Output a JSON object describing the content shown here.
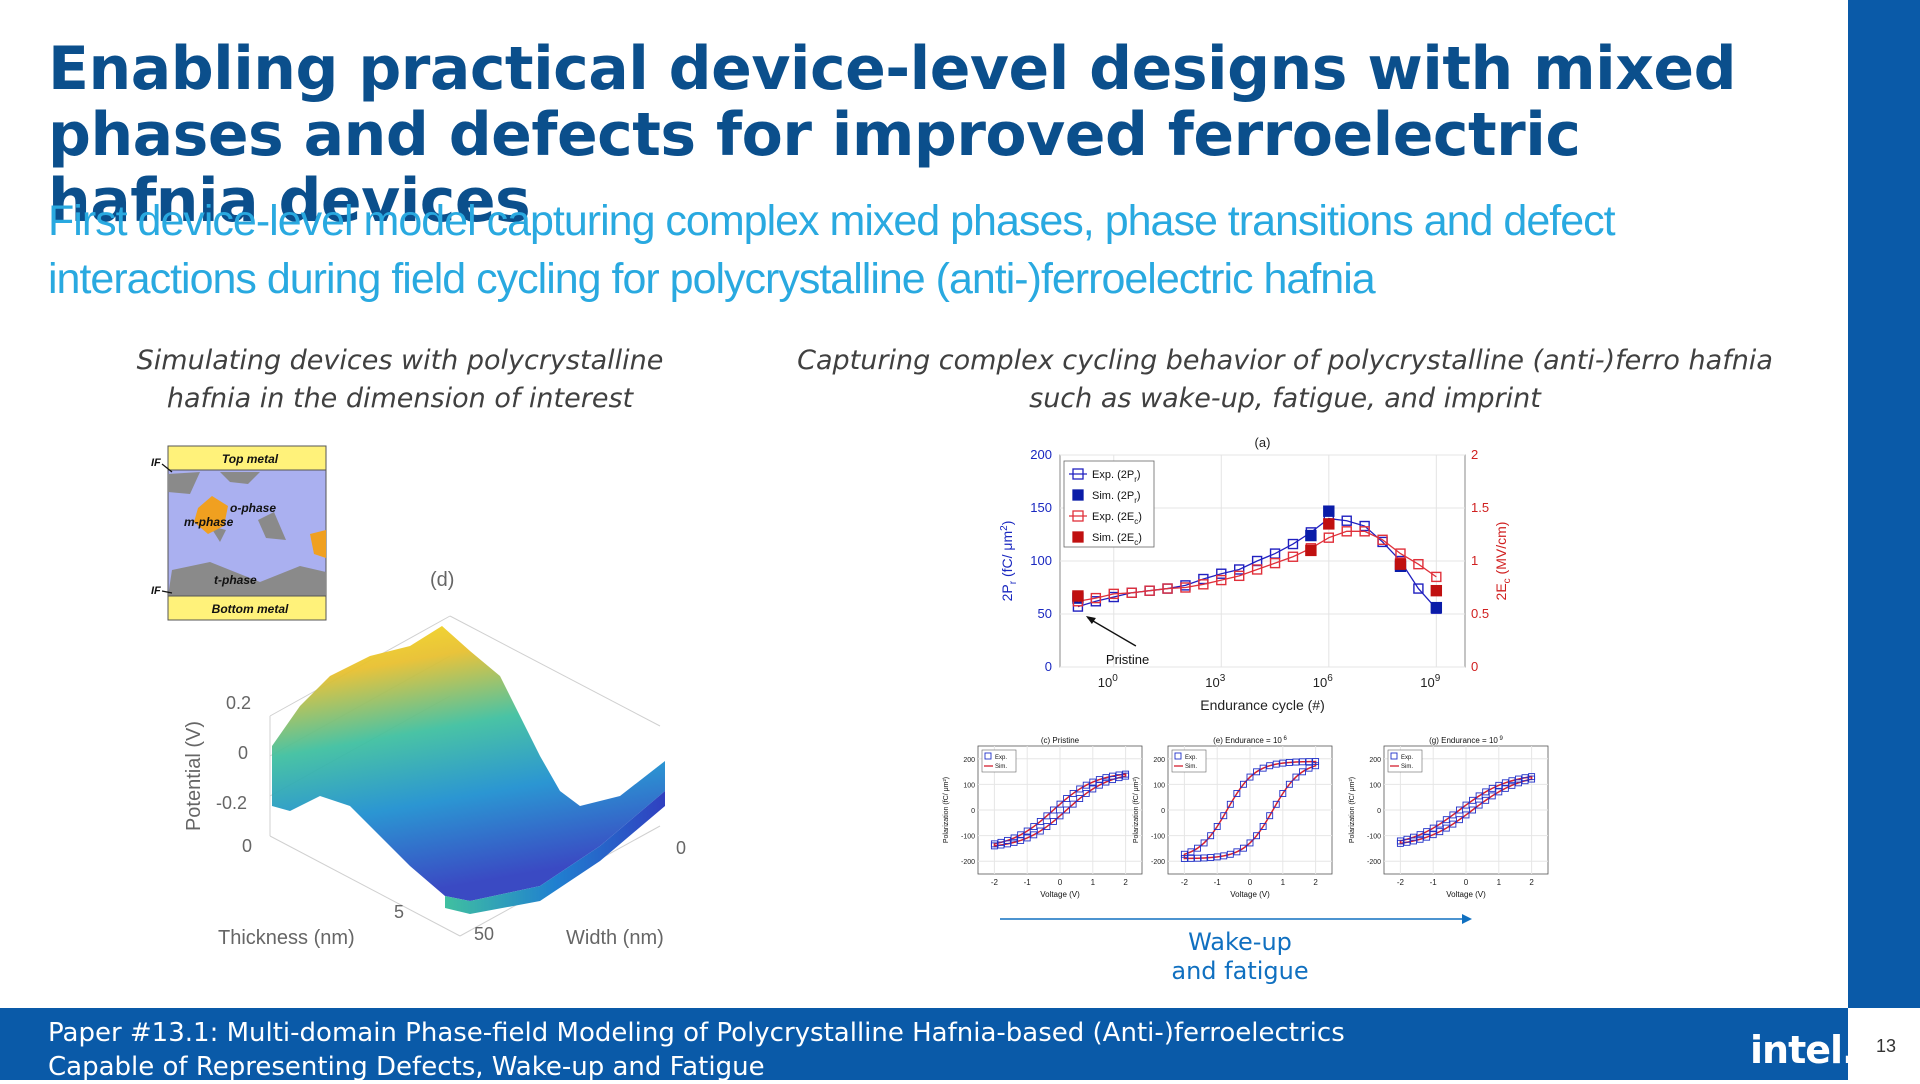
{
  "slide": {
    "title": "Enabling practical device-level designs with mixed phases and defects for improved ferroelectric hafnia devices",
    "subtitle": "First device-level model capturing complex mixed phases, phase transitions and defect interactions during field cycling for polycrystalline (anti-)ferroelectric hafnia",
    "left_caption": "Simulating devices with polycrystalline hafnia in the dimension of interest",
    "right_caption": "Capturing complex cycling behavior of polycrystalline (anti-)ferro hafnia such as wake-up, fatigue, and imprint",
    "footer_line1": "Paper #13.1: Multi-domain Phase-field Modeling of Polycrystalline Hafnia-based (Anti-)ferroelectrics",
    "footer_line2": "Capable of Representing Defects, Wake-up and Fatigue",
    "logo_text": "intel.",
    "page_number": "13",
    "wake_label_1": "Wake-up",
    "wake_label_2": "and fatigue",
    "accent_color": "#0a5aa8",
    "title_color": "#0b4f8c",
    "subtitle_color": "#29a9e0"
  },
  "device_schematic": {
    "top_label": "Top metal",
    "bottom_label": "Bottom metal",
    "o_phase_label": "o-phase",
    "m_phase_label": "m-phase",
    "t_phase_label": "t-phase",
    "if_top_label": "IF",
    "if_bottom_label": "IF"
  },
  "surface_plot": {
    "panel_label": "(d)",
    "zlabel": "Potential (V)",
    "xlabel": "Thickness (nm)",
    "ylabel": "Width (nm)",
    "z_ticks": [
      "0.2",
      "0",
      "-0.2"
    ],
    "thickness_ticks": [
      "0",
      "5"
    ],
    "width_ticks": [
      "0",
      "50"
    ]
  },
  "chart_data": [
    {
      "type": "scatter",
      "panel_label": "(a)",
      "xlabel": "Endurance cycle (#)",
      "ylabel": "2P",
      "ylabel_sub": "r",
      "ylabel_unit": "(fC/ μm",
      "ylabel_sup": "2",
      "ylabel_tail": ")",
      "y2label": "2E",
      "y2label_sub": "c",
      "y2label_unit": "(MV/cm)",
      "x_scale": "log",
      "x_ticks": [
        {
          "base": "10",
          "exp": "0",
          "value": 1
        },
        {
          "base": "10",
          "exp": "3",
          "value": 1000
        },
        {
          "base": "10",
          "exp": "6",
          "value": 1000000
        },
        {
          "base": "10",
          "exp": "9",
          "value": 1000000000
        }
      ],
      "ylim": [
        0,
        200
      ],
      "y_ticks": [
        "0",
        "50",
        "100",
        "150",
        "200"
      ],
      "y2lim": [
        0,
        2
      ],
      "y2_ticks": [
        "0",
        "0.5",
        "1",
        "1.5",
        "2"
      ],
      "annotation": "Pristine",
      "legend": [
        {
          "prefix": "Exp. (2P",
          "sub": "r",
          "suffix": ")",
          "color": "#2020c0",
          "filled": false
        },
        {
          "prefix": "Sim. (2P",
          "sub": "r",
          "suffix": ")",
          "color": "#0a1ca8",
          "filled": true
        },
        {
          "prefix": "Exp. (2E",
          "sub": "c",
          "suffix": ")",
          "color": "#e0303a",
          "filled": false
        },
        {
          "prefix": "Sim. (2E",
          "sub": "c",
          "suffix": ")",
          "color": "#c01010",
          "filled": true
        }
      ],
      "series": [
        {
          "name": "Exp. (2Pr)",
          "axis": "left",
          "color": "#2020c0",
          "log_x": [
            -1,
            -0.5,
            0,
            0.5,
            1,
            1.5,
            2,
            2.5,
            3,
            3.5,
            4,
            4.5,
            5,
            5.5,
            6,
            6.5,
            7,
            7.5,
            8,
            8.5,
            9
          ],
          "y": [
            57,
            62,
            66,
            70,
            72,
            74,
            77,
            83,
            88,
            92,
            100,
            107,
            116,
            127,
            140,
            138,
            133,
            118,
            100,
            74,
            55
          ]
        },
        {
          "name": "Sim. (2Pr)",
          "axis": "left",
          "color": "#0a1ca8",
          "log_x": [
            -1,
            5.5,
            6,
            8,
            9
          ],
          "y": [
            65,
            124,
            147,
            95,
            56
          ]
        },
        {
          "name": "Exp. (2Ec)",
          "axis": "right",
          "color": "#e0303a",
          "log_x": [
            -1,
            -0.5,
            0,
            0.5,
            1,
            1.5,
            2,
            2.5,
            3,
            3.5,
            4,
            4.5,
            5,
            5.5,
            6,
            6.5,
            7,
            7.5,
            8,
            8.5,
            9
          ],
          "y": [
            0.62,
            0.65,
            0.69,
            0.7,
            0.72,
            0.74,
            0.75,
            0.78,
            0.82,
            0.86,
            0.92,
            0.98,
            1.04,
            1.12,
            1.22,
            1.28,
            1.28,
            1.2,
            1.07,
            0.97,
            0.85
          ]
        },
        {
          "name": "Sim. (2Ec)",
          "axis": "right",
          "color": "#c01010",
          "log_x": [
            -1,
            5.5,
            6,
            8,
            9
          ],
          "y": [
            0.67,
            1.1,
            1.35,
            0.97,
            0.72
          ]
        }
      ]
    },
    {
      "type": "line",
      "title": "(c) Pristine",
      "xlabel": "Voltage (V)",
      "ylabel": "Polarization (fC/ μm²)",
      "x_ticks": [
        "-2",
        "-1",
        "0",
        "1",
        "2"
      ],
      "y_ticks": [
        "-200",
        "-100",
        "0",
        "100",
        "200"
      ],
      "xlim": [
        -2.5,
        2.5
      ],
      "ylim": [
        -250,
        250
      ],
      "legend": [
        "Exp.",
        "Sim."
      ],
      "loop": {
        "pmax": 150,
        "pr": 22,
        "vc": 0.2,
        "w": 1.3
      }
    },
    {
      "type": "line",
      "title": "(e) Endurance = 10",
      "title_sup": "6",
      "xlabel": "Voltage (V)",
      "ylabel": "Polarization (fC/ μm²)",
      "x_ticks": [
        "-2",
        "-1",
        "0",
        "1",
        "2"
      ],
      "y_ticks": [
        "-200",
        "-100",
        "0",
        "100",
        "200"
      ],
      "xlim": [
        -2.5,
        2.5
      ],
      "ylim": [
        -250,
        250
      ],
      "legend": [
        "Exp.",
        "Sim."
      ],
      "loop": {
        "pmax": 190,
        "pr": 60,
        "vc": 0.7,
        "w": 0.85
      }
    },
    {
      "type": "line",
      "title": "(g) Endurance = 10",
      "title_sup": "9",
      "xlabel": "Voltage (V)",
      "ylabel": "Polarization (fC/ μm²)",
      "x_ticks": [
        "-2",
        "-1",
        "0",
        "1",
        "2"
      ],
      "y_ticks": [
        "-200",
        "-100",
        "0",
        "100",
        "200"
      ],
      "xlim": [
        -2.5,
        2.5
      ],
      "ylim": [
        -250,
        250
      ],
      "legend": [
        "Exp.",
        "Sim."
      ],
      "loop": {
        "pmax": 145,
        "pr": 14,
        "vc": 0.2,
        "w": 1.5
      }
    }
  ]
}
